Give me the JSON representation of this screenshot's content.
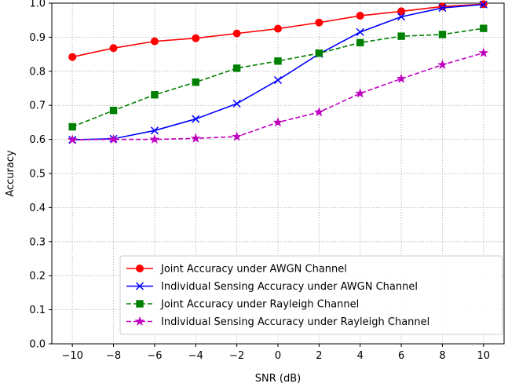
{
  "chart_data": {
    "type": "line",
    "title": "",
    "xlabel": "SNR (dB)",
    "ylabel": "Accuracy",
    "x": [
      -10,
      -8,
      -6,
      -4,
      -2,
      0,
      2,
      4,
      6,
      8,
      10
    ],
    "x_tick_labels": [
      "−10",
      "−8",
      "−6",
      "−4",
      "−2",
      "0",
      "2",
      "4",
      "6",
      "8",
      "10"
    ],
    "y_tick_labels": [
      "0.0",
      "0.1",
      "0.2",
      "0.3",
      "0.4",
      "0.5",
      "0.6",
      "0.7",
      "0.8",
      "0.9",
      "1.0"
    ],
    "y_ticks": [
      0.0,
      0.1,
      0.2,
      0.3,
      0.4,
      0.5,
      0.6,
      0.7,
      0.8,
      0.9,
      1.0
    ],
    "xlim": [
      -11,
      11
    ],
    "ylim": [
      0.0,
      1.0
    ],
    "grid": true,
    "legend_position": "lower-right",
    "series": [
      {
        "name": "Joint Accuracy under AWGN Channel",
        "values": [
          0.842,
          0.868,
          0.888,
          0.897,
          0.911,
          0.925,
          0.943,
          0.963,
          0.976,
          0.99,
          0.997
        ],
        "color": "#ff0000",
        "marker": "circle",
        "dash": "solid"
      },
      {
        "name": "Individual Sensing Accuracy under AWGN Channel",
        "values": [
          0.599,
          0.602,
          0.626,
          0.66,
          0.705,
          0.774,
          0.851,
          0.915,
          0.96,
          0.986,
          0.996
        ],
        "color": "#0000ff",
        "marker": "x",
        "dash": "solid"
      },
      {
        "name": "Joint Accuracy under Rayleigh Channel",
        "values": [
          0.637,
          0.685,
          0.731,
          0.768,
          0.809,
          0.83,
          0.853,
          0.884,
          0.903,
          0.908,
          0.926
        ],
        "color": "#008000",
        "marker": "square",
        "dash": "dashed"
      },
      {
        "name": "Individual Sensing Accuracy under Rayleigh Channel",
        "values": [
          0.599,
          0.6,
          0.6,
          0.603,
          0.608,
          0.65,
          0.68,
          0.735,
          0.778,
          0.819,
          0.854
        ],
        "color": "#bf00bf",
        "marker": "star",
        "dash": "dashed"
      }
    ]
  }
}
